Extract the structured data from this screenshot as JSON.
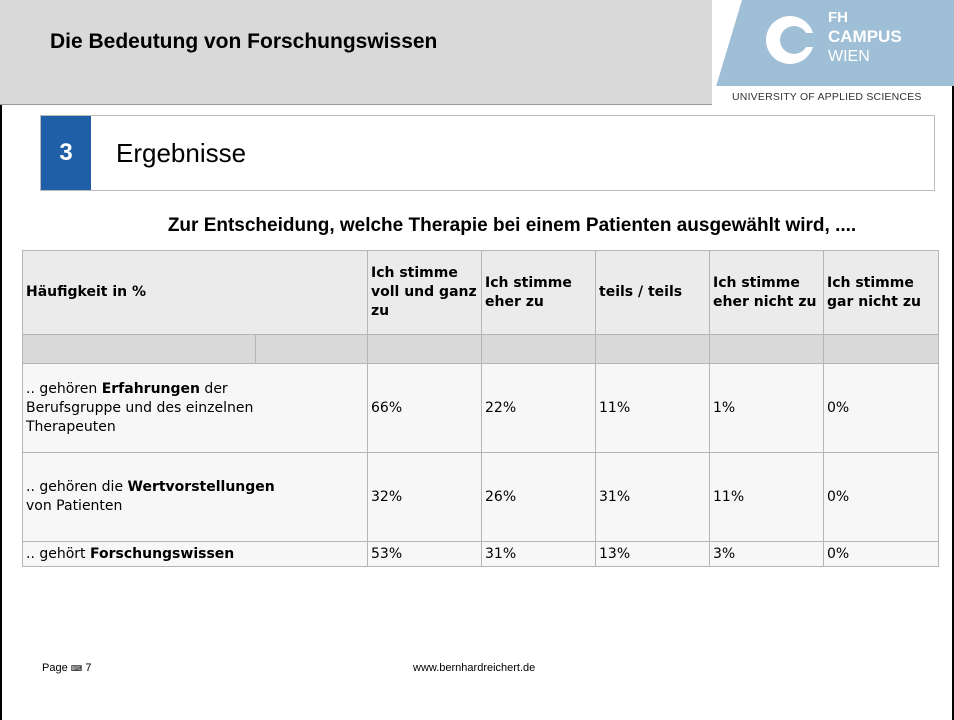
{
  "header": {
    "title": "Die Bedeutung von Forschungswissen",
    "logo": {
      "line1": "FH",
      "line2": "CAMPUS",
      "line3": "WIEN",
      "subtitle": "UNIVERSITY OF APPLIED SCIENCES"
    }
  },
  "section": {
    "number": "3",
    "title": "Ergebnisse"
  },
  "question": "Zur Entscheidung, welche Therapie bei einem Patienten ausgewählt wird, ....",
  "table": {
    "header": [
      "Häufigkeit in %",
      "Ich stimme voll und ganz zu",
      "Ich stimme eher zu",
      "teils / teils",
      "Ich stimme eher nicht zu",
      "Ich stimme gar nicht zu"
    ],
    "rows": [
      {
        "label": [
          {
            "text": ".. gehören "
          },
          {
            "text": "Erfahrungen",
            "bold": true
          },
          {
            "text": " der Berufsgruppe und des einzelnen Therapeuten"
          }
        ],
        "values": [
          "66%",
          "22%",
          "11%",
          "1%",
          "0%"
        ]
      },
      {
        "label": [
          {
            "text": ".. gehören die "
          },
          {
            "text": "Wertvorstellungen",
            "bold": true
          },
          {
            "text": " von Patienten"
          }
        ],
        "values": [
          "32%",
          "26%",
          "31%",
          "11%",
          "0%"
        ]
      },
      {
        "label": [
          {
            "text": ".. gehört "
          },
          {
            "text": "Forschungswissen",
            "bold": true
          }
        ],
        "values": [
          "53%",
          "31%",
          "13%",
          "3%",
          "0%"
        ]
      }
    ]
  },
  "footer": {
    "page_label": "Page",
    "page_number": "7",
    "website": "www.bernhardreichert.de"
  }
}
